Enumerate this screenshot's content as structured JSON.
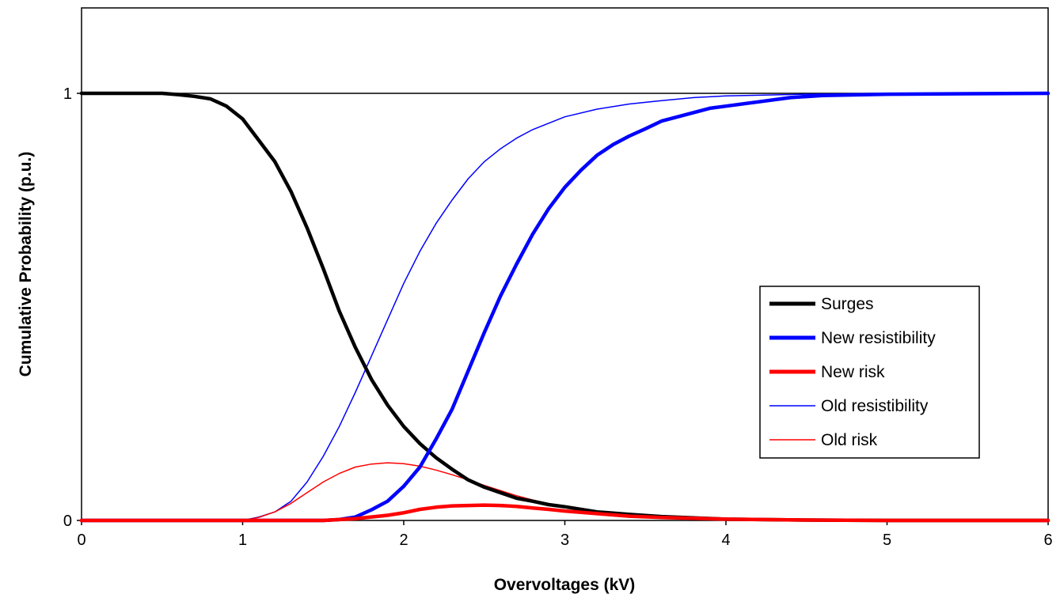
{
  "chart_data": {
    "type": "line",
    "xlabel": "Overvoltages (kV)",
    "ylabel": "Cumulative Probability (p.u.)",
    "xlim": [
      0,
      6
    ],
    "ylim": [
      0,
      1.2
    ],
    "x_ticks": [
      "0",
      "1",
      "2",
      "3",
      "4",
      "5",
      "6"
    ],
    "y_ticks": [
      "0",
      "1"
    ],
    "reference_line_y": 1,
    "grid": false,
    "legend_position": "right",
    "series": [
      {
        "name": "Surges",
        "color": "#000000",
        "weight": "thick",
        "x": [
          0,
          0.5,
          0.6,
          0.7,
          0.8,
          0.9,
          1.0,
          1.1,
          1.2,
          1.3,
          1.4,
          1.5,
          1.6,
          1.7,
          1.8,
          1.9,
          2.0,
          2.1,
          2.2,
          2.3,
          2.4,
          2.5,
          2.6,
          2.7,
          2.8,
          2.9,
          3.0,
          3.2,
          3.4,
          3.6,
          3.8,
          4.0,
          4.5,
          5.0,
          6.0
        ],
        "y": [
          1.0,
          1.0,
          0.997,
          0.993,
          0.987,
          0.97,
          0.94,
          0.89,
          0.84,
          0.77,
          0.685,
          0.59,
          0.49,
          0.405,
          0.33,
          0.27,
          0.22,
          0.18,
          0.147,
          0.12,
          0.095,
          0.078,
          0.065,
          0.052,
          0.045,
          0.037,
          0.032,
          0.02,
          0.014,
          0.009,
          0.006,
          0.003,
          0.001,
          0.0,
          0.0
        ]
      },
      {
        "name": "New resistibility",
        "color": "#0000ff",
        "weight": "thick",
        "x": [
          0,
          1.5,
          1.6,
          1.7,
          1.8,
          1.9,
          2.0,
          2.1,
          2.2,
          2.3,
          2.4,
          2.5,
          2.6,
          2.7,
          2.8,
          2.9,
          3.0,
          3.1,
          3.2,
          3.3,
          3.4,
          3.5,
          3.6,
          3.7,
          3.8,
          3.9,
          4.0,
          4.2,
          4.4,
          4.6,
          5.0,
          5.5,
          6.0
        ],
        "y": [
          0.0,
          0.0,
          0.002,
          0.008,
          0.025,
          0.045,
          0.08,
          0.125,
          0.19,
          0.26,
          0.35,
          0.44,
          0.525,
          0.6,
          0.67,
          0.73,
          0.78,
          0.82,
          0.855,
          0.88,
          0.9,
          0.917,
          0.935,
          0.945,
          0.955,
          0.965,
          0.97,
          0.98,
          0.99,
          0.995,
          0.998,
          0.999,
          1.0
        ]
      },
      {
        "name": "New risk",
        "color": "#ff0000",
        "weight": "thick",
        "x": [
          0,
          1.5,
          1.7,
          1.9,
          2.0,
          2.1,
          2.2,
          2.3,
          2.4,
          2.5,
          2.6,
          2.7,
          2.8,
          2.9,
          3.0,
          3.1,
          3.2,
          3.4,
          3.6,
          3.8,
          4.0,
          4.5,
          5.0,
          6.0
        ],
        "y": [
          0.0,
          0.0,
          0.004,
          0.012,
          0.018,
          0.026,
          0.031,
          0.034,
          0.035,
          0.036,
          0.035,
          0.033,
          0.029,
          0.026,
          0.022,
          0.019,
          0.016,
          0.01,
          0.007,
          0.005,
          0.003,
          0.001,
          0.0,
          0.0
        ]
      },
      {
        "name": "Old resistibility",
        "color": "#0000ff",
        "weight": "thin",
        "x": [
          0,
          1.0,
          1.1,
          1.2,
          1.3,
          1.4,
          1.5,
          1.6,
          1.7,
          1.8,
          1.9,
          2.0,
          2.1,
          2.2,
          2.3,
          2.4,
          2.5,
          2.6,
          2.7,
          2.8,
          2.9,
          3.0,
          3.2,
          3.4,
          3.6,
          3.8,
          4.0,
          4.5,
          5.0,
          6.0
        ],
        "y": [
          0.0,
          0.0,
          0.008,
          0.02,
          0.045,
          0.09,
          0.15,
          0.22,
          0.3,
          0.385,
          0.47,
          0.555,
          0.63,
          0.695,
          0.75,
          0.8,
          0.84,
          0.87,
          0.895,
          0.915,
          0.93,
          0.945,
          0.963,
          0.975,
          0.983,
          0.99,
          0.994,
          0.998,
          1.0,
          1.0
        ]
      },
      {
        "name": "Old risk",
        "color": "#ff0000",
        "weight": "thin",
        "x": [
          0,
          1.0,
          1.1,
          1.2,
          1.3,
          1.4,
          1.5,
          1.6,
          1.7,
          1.8,
          1.9,
          2.0,
          2.1,
          2.2,
          2.3,
          2.4,
          2.5,
          2.6,
          2.7,
          2.8,
          2.9,
          3.0,
          3.2,
          3.4,
          3.6,
          3.8,
          4.0,
          4.5,
          5.0,
          6.0
        ],
        "y": [
          0.0,
          0.0,
          0.007,
          0.02,
          0.04,
          0.065,
          0.09,
          0.11,
          0.125,
          0.132,
          0.135,
          0.133,
          0.127,
          0.118,
          0.107,
          0.095,
          0.082,
          0.07,
          0.058,
          0.048,
          0.039,
          0.031,
          0.02,
          0.012,
          0.007,
          0.004,
          0.002,
          0.001,
          0.0,
          0.0
        ]
      }
    ]
  }
}
